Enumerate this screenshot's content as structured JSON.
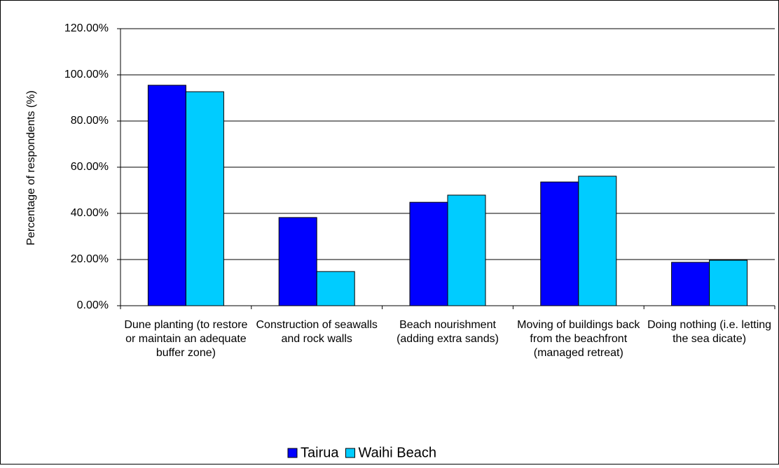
{
  "chart_data": {
    "type": "bar",
    "y_label": "Percentage of respondents (%)",
    "categories": [
      "Dune planting (to restore or maintain an adequate buffer zone)",
      "Construction of seawalls and rock walls",
      "Beach nourishment (adding extra sands)",
      "Moving of buildings back from the beachfront (managed retreat)",
      "Doing nothing (i.e. letting the sea dicate)"
    ],
    "series": [
      {
        "name": "Tairua",
        "color": "#0000ff",
        "values": [
          95.5,
          38.2,
          44.8,
          53.6,
          18.8
        ]
      },
      {
        "name": "Waihi Beach",
        "color": "#00ccff",
        "values": [
          92.7,
          14.8,
          47.9,
          56.1,
          19.7
        ]
      }
    ],
    "ylim": [
      0,
      120
    ],
    "yticks": [
      {
        "value": 0,
        "label": "0.00%"
      },
      {
        "value": 20,
        "label": "20.00%"
      },
      {
        "value": 40,
        "label": "40.00%"
      },
      {
        "value": 60,
        "label": "60.00%"
      },
      {
        "value": 80,
        "label": "80.00%"
      },
      {
        "value": 100,
        "label": "100.00%"
      },
      {
        "value": 120,
        "label": "120.00%"
      }
    ],
    "grid": true,
    "legend": "bottom"
  }
}
